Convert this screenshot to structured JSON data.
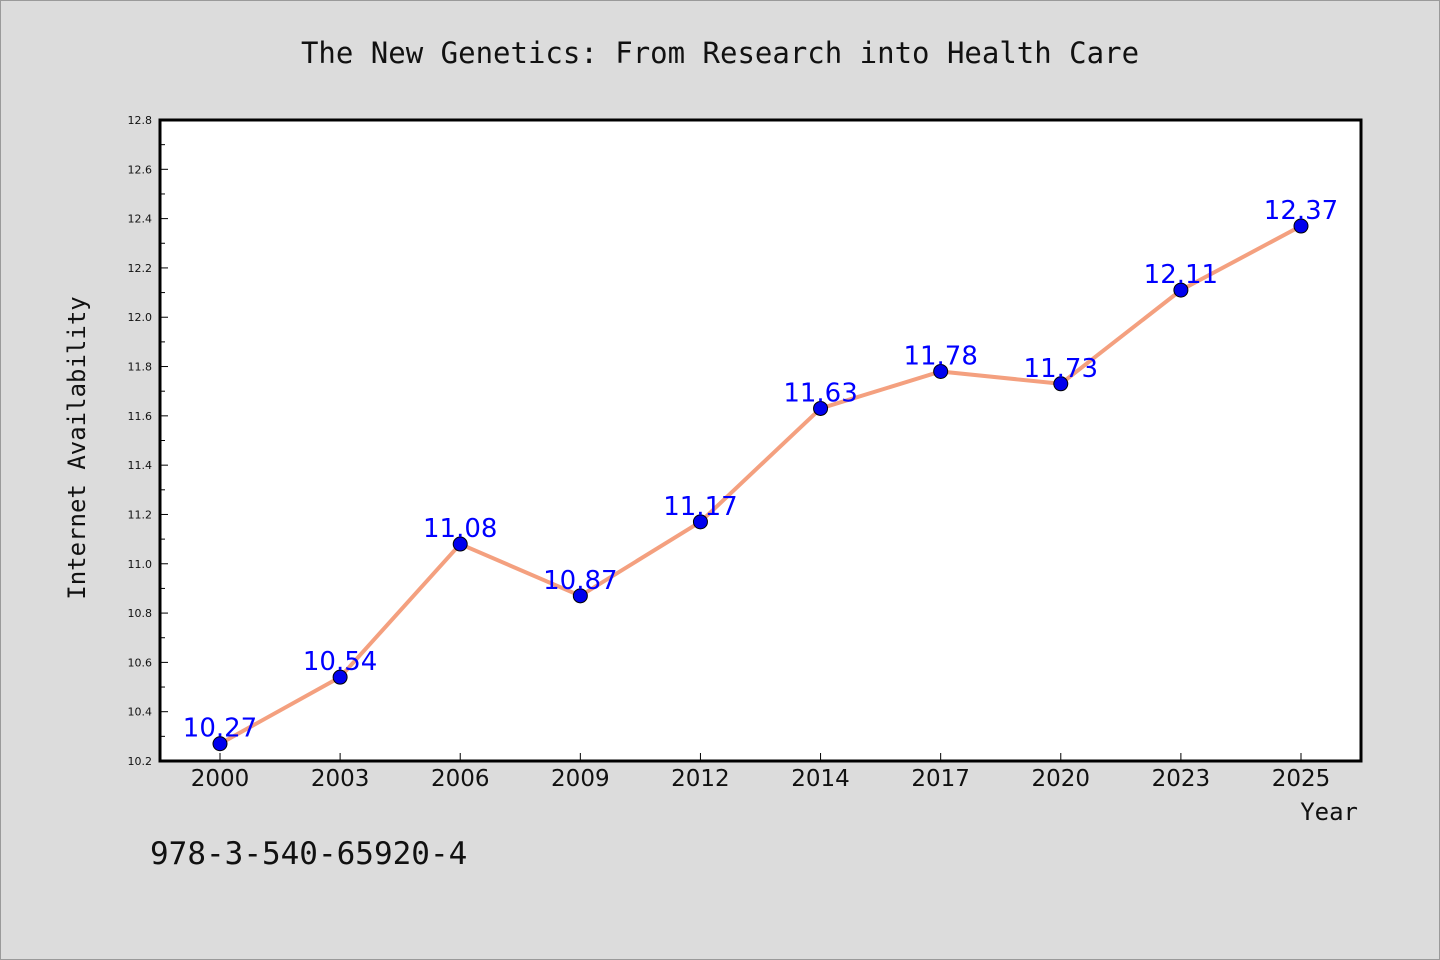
{
  "chart_data": {
    "type": "line",
    "title": "The New Genetics: From Research into Health Care",
    "xlabel": "Year",
    "ylabel": "Internet Availability",
    "categories": [
      "2000",
      "2003",
      "2006",
      "2009",
      "2012",
      "2014",
      "2017",
      "2020",
      "2023",
      "2025"
    ],
    "series": [
      {
        "values": [
          10.27,
          10.54,
          11.08,
          10.87,
          11.17,
          11.63,
          11.78,
          11.73,
          12.11,
          12.37
        ]
      }
    ],
    "data_labels": [
      "10.27",
      "10.54",
      "11.08",
      "10.87",
      "11.17",
      "11.63",
      "11.78",
      "11.73",
      "12.11",
      "12.37"
    ],
    "ylim": [
      10.2,
      12.8
    ],
    "yticks": [
      10.2,
      10.4,
      10.6,
      10.8,
      11.0,
      11.2,
      11.4,
      11.6,
      11.8,
      12.0,
      12.2,
      12.4,
      12.6,
      12.8
    ],
    "ytick_labels": [
      "10.2",
      "10.4",
      "10.6",
      "10.8",
      "11.0",
      "11.2",
      "11.4",
      "11.6",
      "11.8",
      "12.0",
      "12.2",
      "12.4",
      "12.6",
      "12.8"
    ],
    "grid": false,
    "legend": "none",
    "colors": {
      "line": "#f4a07f",
      "marker": "#0000ee",
      "marker_edge": "#000000",
      "data_label": "#0000ff",
      "plot_background": "#ffffff",
      "figure_background": "#dcdcdc"
    }
  },
  "annotation": "978-3-540-65920-4"
}
